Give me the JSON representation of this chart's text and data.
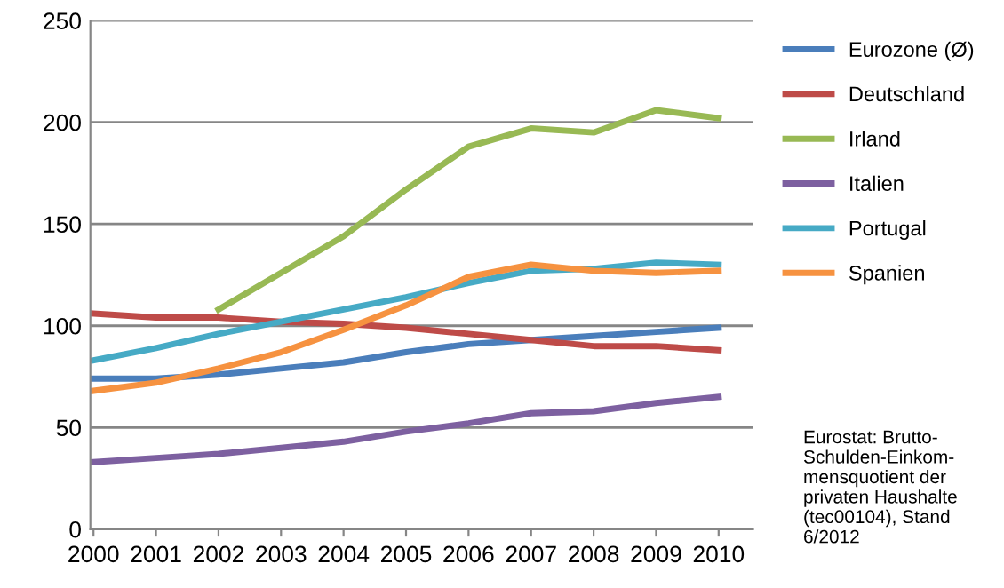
{
  "chart_data": {
    "type": "line",
    "categories": [
      "2000",
      "2001",
      "2002",
      "2003",
      "2004",
      "2005",
      "2006",
      "2007",
      "2008",
      "2009",
      "2010"
    ],
    "series": [
      {
        "name": "Eurozone (Ø)",
        "color": "#4a7ebb",
        "values": [
          74,
          74,
          76,
          79,
          82,
          87,
          91,
          93,
          95,
          97,
          99
        ]
      },
      {
        "name": "Deutschland",
        "color": "#be4b48",
        "values": [
          106,
          104,
          104,
          102,
          101,
          99,
          96,
          93,
          90,
          90,
          88
        ]
      },
      {
        "name": "Irland",
        "color": "#98b954",
        "values": [
          null,
          null,
          108,
          126,
          144,
          167,
          188,
          197,
          195,
          206,
          202
        ]
      },
      {
        "name": "Italien",
        "color": "#7d60a0",
        "values": [
          33,
          35,
          37,
          40,
          43,
          48,
          52,
          57,
          58,
          62,
          65
        ]
      },
      {
        "name": "Portugal",
        "color": "#46aac5",
        "values": [
          83,
          89,
          96,
          102,
          108,
          114,
          121,
          127,
          128,
          131,
          130
        ]
      },
      {
        "name": "Spanien",
        "color": "#f69240",
        "values": [
          68,
          72,
          79,
          87,
          98,
          110,
          124,
          130,
          127,
          126,
          127
        ]
      }
    ],
    "ylim": [
      0,
      250
    ],
    "yticks": [
      0,
      50,
      100,
      150,
      200,
      250
    ],
    "grid": "y",
    "legend": "right",
    "marker": "none",
    "line_style": "solid",
    "annotations": [
      "Eurostat: Brutto-\nSchulden-Einkom-\nmensquotient der\nprivaten Haushalte\n(tec00104), Stand\n6/2012"
    ]
  }
}
